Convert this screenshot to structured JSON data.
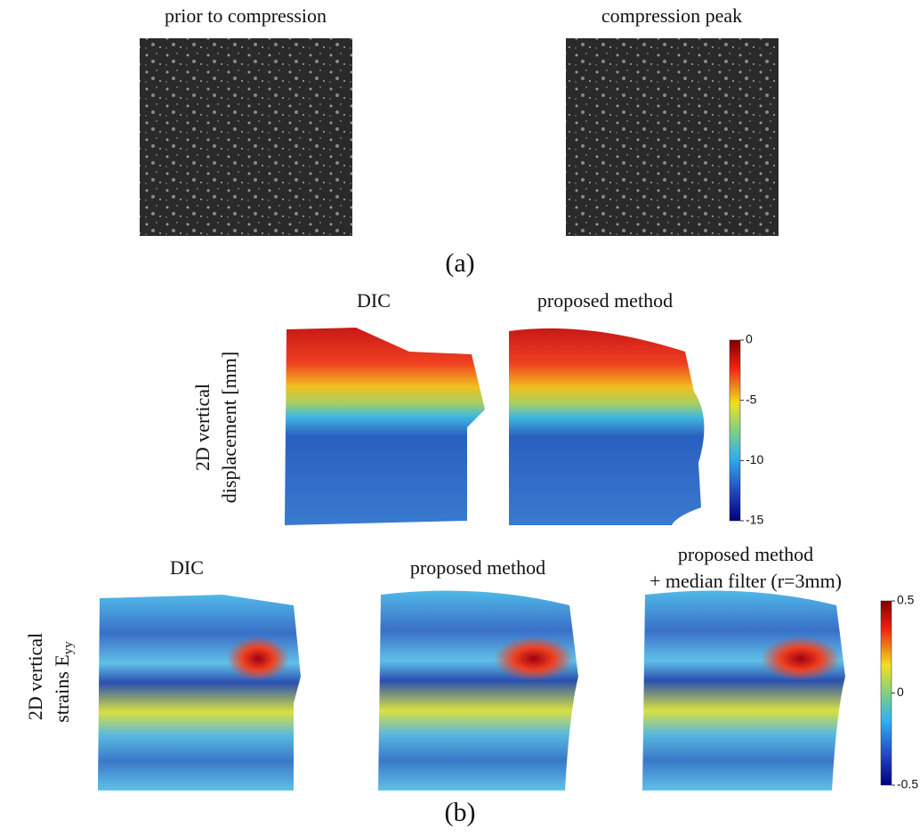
{
  "panel_a": {
    "photos": [
      {
        "title": "prior to compression"
      },
      {
        "title": "compression peak"
      }
    ],
    "label": "(a)"
  },
  "panel_b": {
    "row1": {
      "axis_label": [
        "2D vertical",
        "displacement [mm]"
      ],
      "maps": [
        {
          "title": "DIC"
        },
        {
          "title": "proposed method"
        }
      ],
      "colorbar": {
        "lim": [
          -15,
          0
        ],
        "ticks": [
          0,
          -5,
          -10,
          -15
        ]
      }
    },
    "row2": {
      "axis_label": [
        "2D vertical",
        "strains E",
        "yy"
      ],
      "maps": [
        {
          "title": "DIC"
        },
        {
          "title": "proposed method"
        },
        {
          "title": [
            "proposed method",
            "+ median filter (r=3mm)"
          ]
        }
      ],
      "colorbar": {
        "lim": [
          -0.5,
          0.5
        ],
        "ticks": [
          0.5,
          0,
          -0.5
        ]
      }
    },
    "label": "(b)"
  }
}
